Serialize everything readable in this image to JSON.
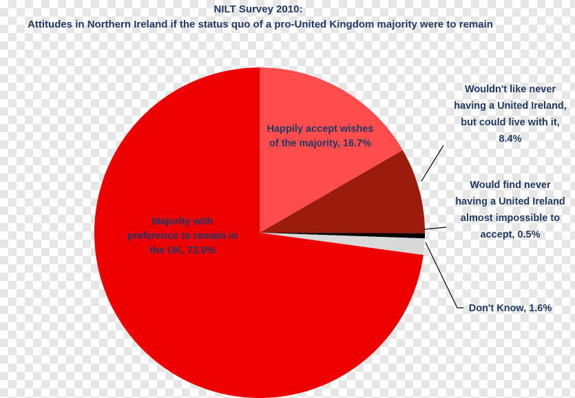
{
  "chart_data": {
    "type": "pie",
    "title": "NILT Survey 2010:",
    "subtitle": "Attitudes in Northern Ireland if the status quo of a pro-United Kingdom majority were to remain",
    "slices": [
      {
        "label_lines": [
          "Happily accept wishes",
          "of the majority, 16.7%"
        ],
        "value": 16.7,
        "color": "#ff4d4d"
      },
      {
        "label_lines": [
          "Wouldn't like never",
          "having a United Ireland,",
          "but could live with it,",
          "8.4%"
        ],
        "value": 8.4,
        "color": "#9b1c0c"
      },
      {
        "label_lines": [
          "Would find never",
          "having a United Ireland",
          "almost impossible to",
          "accept, 0.5%"
        ],
        "value": 0.5,
        "color": "#000000"
      },
      {
        "label_lines": [
          "Don't Know, 1.6%"
        ],
        "value": 1.6,
        "color": "#d9d9d9"
      },
      {
        "label_lines": [
          "Majority with",
          "preference to remain in",
          "the UK, 73.0%"
        ],
        "value": 73.0,
        "color": "#ee0000"
      }
    ]
  }
}
